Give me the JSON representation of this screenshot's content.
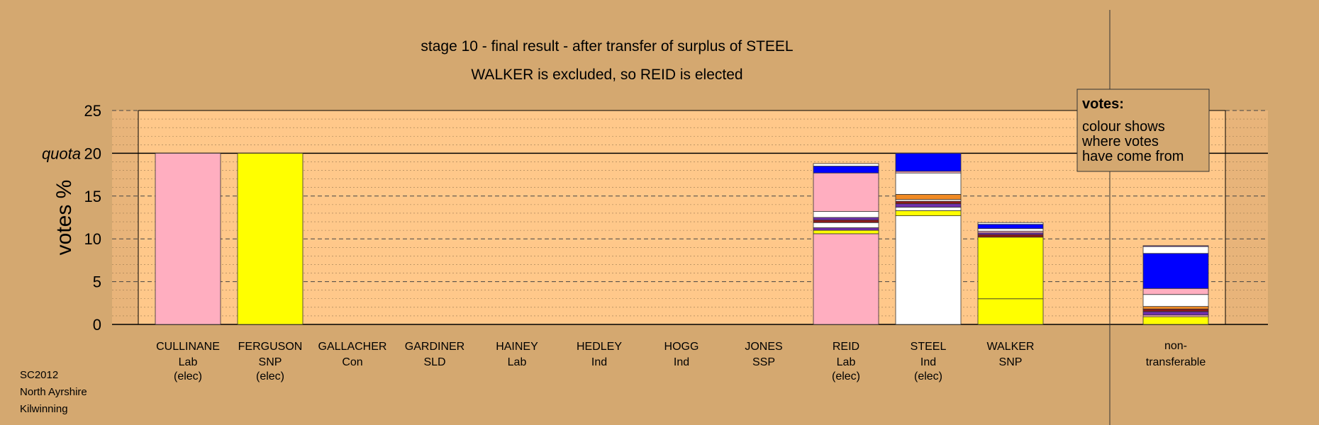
{
  "chart_data": {
    "type": "bar",
    "title": "stage 10 - final result - after transfer of surplus of STEEL",
    "subtitle": "WALKER is excluded, so REID is elected",
    "ylabel": "votes %",
    "quota_label": "quota",
    "quota": 20,
    "ylim": [
      0,
      25
    ],
    "yticks": [
      0,
      5,
      10,
      15,
      20,
      25
    ],
    "grid": true,
    "legend": {
      "title": "votes:",
      "lines": [
        "colour shows",
        "where votes",
        "have come from"
      ],
      "position": "top-right"
    },
    "colors": {
      "Lab": "#ffaec0",
      "SNP": "#ffff00",
      "Ind": "#ffffff",
      "Con": "#0000ff",
      "SLD": "#f08a24",
      "SSP": "#8b1a1a",
      "Other": "#6f2fae",
      "background": "#d4a870",
      "plot_area": "#ffc88a"
    },
    "candidates": [
      {
        "name": "CULLINANE",
        "party": "Lab",
        "status": "(elec)",
        "segments": [
          {
            "from": "Lab",
            "value": 20.0
          }
        ]
      },
      {
        "name": "FERGUSON",
        "party": "SNP",
        "status": "(elec)",
        "segments": [
          {
            "from": "SNP",
            "value": 20.0
          }
        ]
      },
      {
        "name": "GALLACHER",
        "party": "Con",
        "status": "",
        "segments": []
      },
      {
        "name": "GARDINER",
        "party": "SLD",
        "status": "",
        "segments": []
      },
      {
        "name": "HAINEY",
        "party": "Lab",
        "status": "",
        "segments": []
      },
      {
        "name": "HEDLEY",
        "party": "Ind",
        "status": "",
        "segments": []
      },
      {
        "name": "HOGG",
        "party": "Ind",
        "status": "",
        "segments": []
      },
      {
        "name": "JONES",
        "party": "SSP",
        "status": "",
        "segments": []
      },
      {
        "name": "REID",
        "party": "Lab",
        "status": "(elec)",
        "segments": [
          {
            "from": "Lab",
            "value": 10.6
          },
          {
            "from": "SNP",
            "value": 0.4
          },
          {
            "from": "Other",
            "value": 0.3
          },
          {
            "from": "Ind",
            "value": 0.6
          },
          {
            "from": "SSP",
            "value": 0.3
          },
          {
            "from": "Other",
            "value": 0.3
          },
          {
            "from": "Ind",
            "value": 0.7
          },
          {
            "from": "Lab",
            "value": 4.5
          },
          {
            "from": "Con",
            "value": 0.8
          },
          {
            "from": "Ind",
            "value": 0.3
          }
        ]
      },
      {
        "name": "STEEL",
        "party": "Ind",
        "status": "(elec)",
        "segments": [
          {
            "from": "Ind",
            "value": 12.7
          },
          {
            "from": "SNP",
            "value": 0.6
          },
          {
            "from": "Ind",
            "value": 0.4
          },
          {
            "from": "Other",
            "value": 0.4
          },
          {
            "from": "SSP",
            "value": 0.3
          },
          {
            "from": "Ind",
            "value": 0.2
          },
          {
            "from": "SLD",
            "value": 0.6
          },
          {
            "from": "Ind",
            "value": 2.5
          },
          {
            "from": "Lab",
            "value": 0.2
          },
          {
            "from": "Con",
            "value": 2.1
          }
        ]
      },
      {
        "name": "WALKER",
        "party": "SNP",
        "status": "",
        "segments": [
          {
            "from": "SNP",
            "value": 3.0
          },
          {
            "from": "SNP",
            "value": 7.2
          },
          {
            "from": "SSP",
            "value": 0.3
          },
          {
            "from": "Other",
            "value": 0.2
          },
          {
            "from": "Lab",
            "value": 0.2
          },
          {
            "from": "Ind",
            "value": 0.3
          },
          {
            "from": "Con",
            "value": 0.5
          },
          {
            "from": "Ind",
            "value": 0.2
          }
        ]
      }
    ],
    "non_transferable": {
      "label": [
        "non-",
        "transferable"
      ],
      "segments": [
        {
          "from": "SNP",
          "value": 0.9
        },
        {
          "from": "Lab",
          "value": 0.2
        },
        {
          "from": "Other",
          "value": 0.4
        },
        {
          "from": "SSP",
          "value": 0.3
        },
        {
          "from": "SLD",
          "value": 0.3
        },
        {
          "from": "Ind",
          "value": 1.4
        },
        {
          "from": "Lab",
          "value": 0.7
        },
        {
          "from": "Con",
          "value": 4.1
        },
        {
          "from": "Ind",
          "value": 0.8
        },
        {
          "from": "Other",
          "value": 0.1
        }
      ]
    }
  },
  "footer": {
    "code": "SC2012",
    "council": "North Ayrshire",
    "ward": "Kilwinning"
  }
}
